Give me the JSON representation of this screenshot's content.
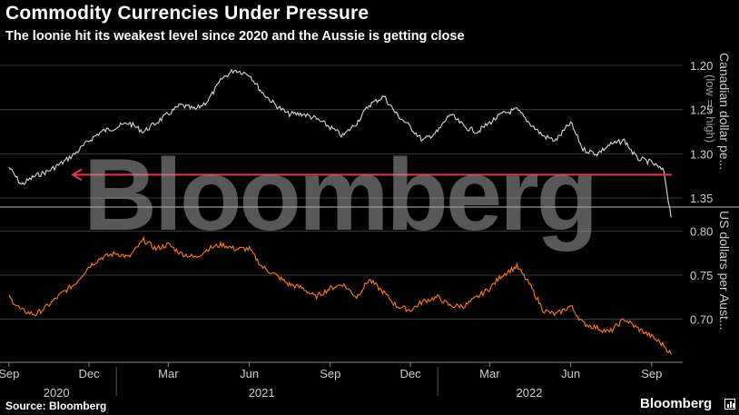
{
  "header": {
    "title": "Commodity Currencies Under Pressure",
    "subtitle": "The loonie hit its weakest level since 2020 and the Aussie is getting close"
  },
  "footer": {
    "source": "Source: Bloomberg",
    "brand": "Bloomberg"
  },
  "watermark": "Bloomberg",
  "colors": {
    "background": "#000000",
    "cad_line": "#d9d9d9",
    "aud_line": "#ff7a1a",
    "marker_line": "#e8334a",
    "axis_text": "#cccccc"
  },
  "chart_data": [
    {
      "type": "line",
      "ylabel": "Canadian dollar pe...",
      "ylabel_tag": "(low => high)",
      "y_inverted": true,
      "ylim": [
        1.2,
        1.35
      ],
      "yticks": [
        "1.20",
        "1.25",
        "1.30",
        "1.35"
      ],
      "series": [
        {
          "x": [
            "2020-09-01",
            "2020-09-15",
            "2020-10-01",
            "2020-10-15",
            "2020-11-01",
            "2020-11-15",
            "2020-12-01",
            "2020-12-15",
            "2021-01-01",
            "2021-01-15",
            "2021-02-01",
            "2021-02-15",
            "2021-03-01",
            "2021-03-15",
            "2021-04-01",
            "2021-04-15",
            "2021-05-01",
            "2021-05-15",
            "2021-06-01",
            "2021-06-15",
            "2021-07-01",
            "2021-07-15",
            "2021-08-01",
            "2021-08-15",
            "2021-09-01",
            "2021-09-15",
            "2021-10-01",
            "2021-10-15",
            "2021-11-01",
            "2021-11-15",
            "2021-12-01",
            "2021-12-15",
            "2022-01-01",
            "2022-01-15",
            "2022-02-01",
            "2022-02-15",
            "2022-03-01",
            "2022-03-15",
            "2022-04-01",
            "2022-04-15",
            "2022-05-01",
            "2022-05-15",
            "2022-06-01",
            "2022-06-15",
            "2022-07-01",
            "2022-07-15",
            "2022-08-01",
            "2022-08-15",
            "2022-09-01",
            "2022-09-15",
            "2022-09-23"
          ],
          "values": [
            1.315,
            1.335,
            1.325,
            1.32,
            1.31,
            1.3,
            1.285,
            1.275,
            1.27,
            1.265,
            1.275,
            1.265,
            1.255,
            1.245,
            1.25,
            1.24,
            1.215,
            1.205,
            1.21,
            1.23,
            1.245,
            1.255,
            1.255,
            1.26,
            1.27,
            1.28,
            1.265,
            1.245,
            1.235,
            1.255,
            1.27,
            1.285,
            1.275,
            1.255,
            1.27,
            1.275,
            1.265,
            1.255,
            1.25,
            1.265,
            1.28,
            1.285,
            1.265,
            1.295,
            1.3,
            1.29,
            1.285,
            1.305,
            1.31,
            1.32,
            1.372
          ]
        }
      ],
      "reference_line": {
        "value": 1.3237,
        "label": "weakest level since 2020"
      }
    },
    {
      "type": "line",
      "ylabel": "US dollars per Aust...",
      "ylim": [
        0.66,
        0.81
      ],
      "yticks": [
        "0.80",
        "0.75",
        "0.70"
      ],
      "series": [
        {
          "x": [
            "2020-09-01",
            "2020-09-15",
            "2020-10-01",
            "2020-10-15",
            "2020-11-01",
            "2020-11-15",
            "2020-12-01",
            "2020-12-15",
            "2021-01-01",
            "2021-01-15",
            "2021-02-01",
            "2021-02-15",
            "2021-03-01",
            "2021-03-15",
            "2021-04-01",
            "2021-04-15",
            "2021-05-01",
            "2021-05-15",
            "2021-06-01",
            "2021-06-15",
            "2021-07-01",
            "2021-07-15",
            "2021-08-01",
            "2021-08-15",
            "2021-09-01",
            "2021-09-15",
            "2021-10-01",
            "2021-10-15",
            "2021-11-01",
            "2021-11-15",
            "2021-12-01",
            "2021-12-15",
            "2022-01-01",
            "2022-01-15",
            "2022-02-01",
            "2022-02-15",
            "2022-03-01",
            "2022-03-15",
            "2022-04-01",
            "2022-04-15",
            "2022-05-01",
            "2022-05-15",
            "2022-06-01",
            "2022-06-15",
            "2022-07-01",
            "2022-07-15",
            "2022-08-01",
            "2022-08-15",
            "2022-09-01",
            "2022-09-15",
            "2022-09-23"
          ],
          "values": [
            0.725,
            0.71,
            0.705,
            0.715,
            0.73,
            0.74,
            0.76,
            0.77,
            0.775,
            0.77,
            0.79,
            0.78,
            0.785,
            0.775,
            0.77,
            0.78,
            0.785,
            0.78,
            0.78,
            0.76,
            0.75,
            0.74,
            0.735,
            0.725,
            0.735,
            0.74,
            0.725,
            0.745,
            0.73,
            0.715,
            0.71,
            0.72,
            0.725,
            0.715,
            0.715,
            0.725,
            0.735,
            0.75,
            0.76,
            0.74,
            0.71,
            0.705,
            0.715,
            0.695,
            0.69,
            0.685,
            0.7,
            0.69,
            0.68,
            0.67,
            0.66
          ]
        }
      ]
    }
  ],
  "x_axis": {
    "months": [
      "Sep",
      "Dec",
      "Mar",
      "Jun",
      "Sep",
      "Dec",
      "Mar",
      "Jun",
      "Sep"
    ],
    "years": [
      "2020",
      "2021",
      "2022"
    ]
  }
}
